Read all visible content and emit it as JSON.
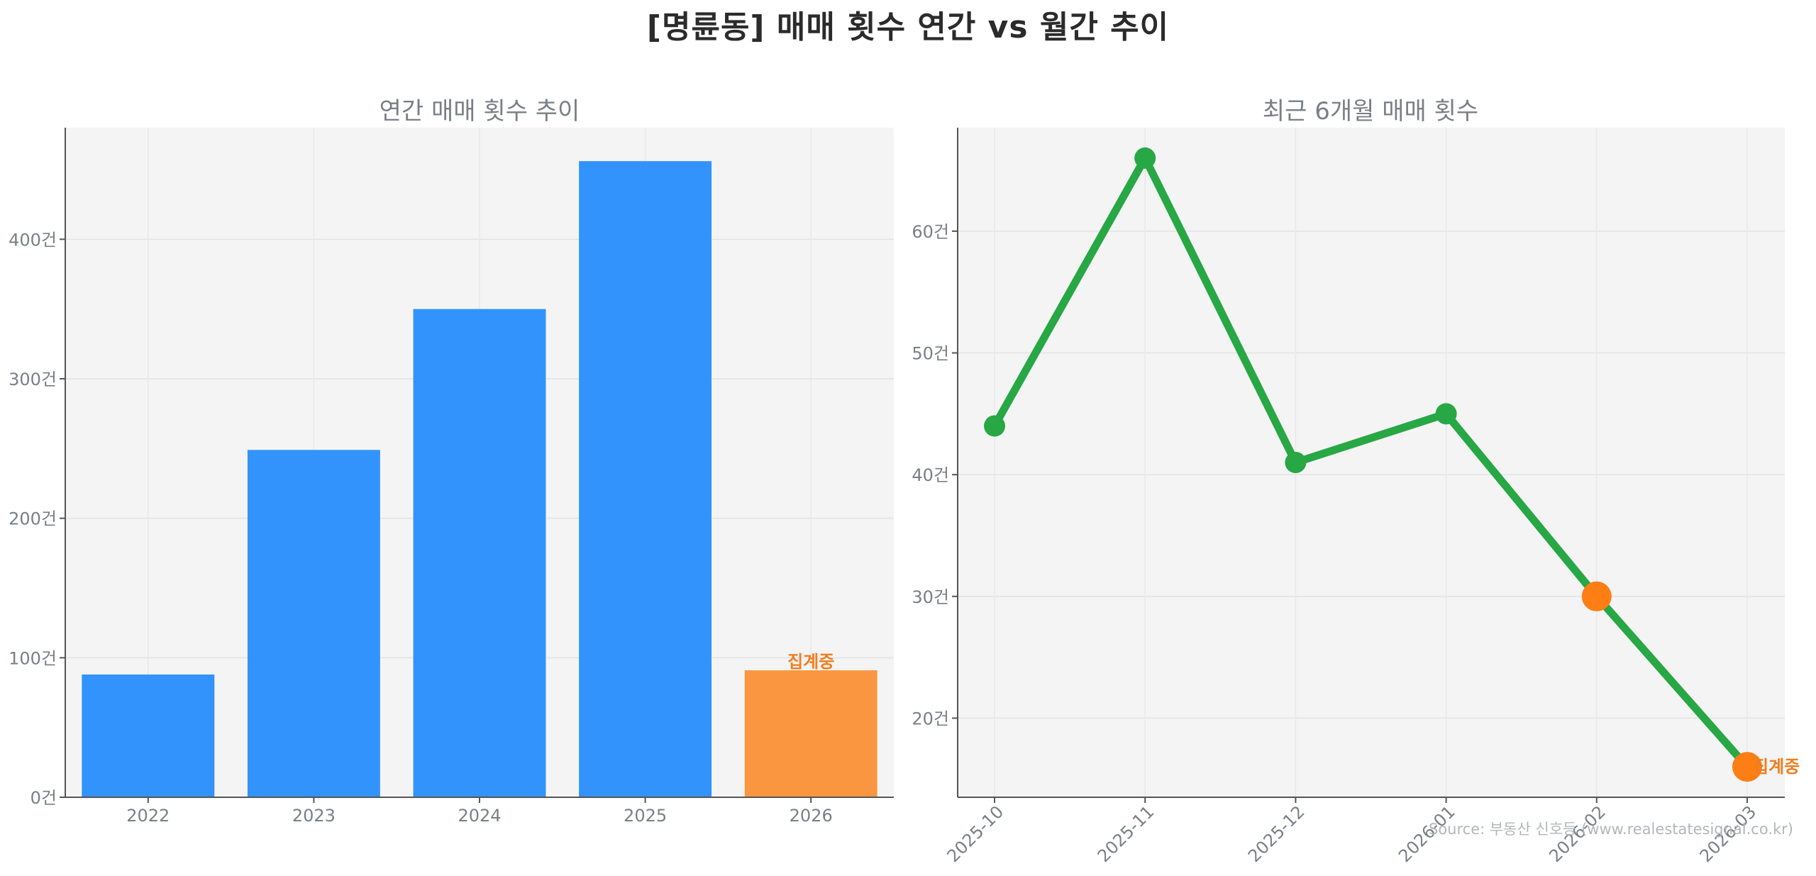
{
  "title": "[명륜동] 매매 횟수 연간 vs 월간 추이",
  "source": "Source: 부동산 신호등 (www.realestatesignal.co.kr)",
  "colors": {
    "bar": "#3193fb",
    "bar_current": "#fa9640",
    "line": "#28a745",
    "highlight": "#fd7e14",
    "plot_bg": "#f4f4f4"
  },
  "chart_data": [
    {
      "type": "bar",
      "title": "연간 매매 횟수 추이",
      "categories": [
        "2022",
        "2023",
        "2024",
        "2025",
        "2026"
      ],
      "values": [
        88,
        249,
        350,
        456,
        91
      ],
      "highlight_index": 4,
      "highlight_label": "집계중",
      "ylim": [
        0,
        480
      ],
      "yticks": [
        0,
        100,
        200,
        300,
        400
      ],
      "ytick_labels": [
        "0건",
        "100건",
        "200건",
        "300건",
        "400건"
      ],
      "grid": true
    },
    {
      "type": "line",
      "title": "최근 6개월 매매 횟수",
      "categories": [
        "2025-10",
        "2025-11",
        "2025-12",
        "2026-01",
        "2026-02",
        "2026-03"
      ],
      "values": [
        44,
        66,
        41,
        45,
        30,
        16
      ],
      "highlight_indices": [
        4,
        5
      ],
      "highlight_label": "집계중",
      "ylim": [
        13.5,
        68.5
      ],
      "yticks": [
        20,
        30,
        40,
        50,
        60
      ],
      "ytick_labels": [
        "20건",
        "30건",
        "40건",
        "50건",
        "60건"
      ],
      "grid": true
    }
  ]
}
